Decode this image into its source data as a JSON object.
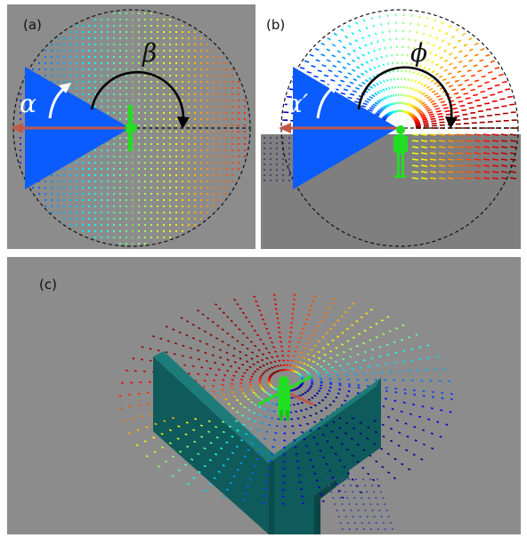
{
  "panels": {
    "a": {
      "label": "(a)",
      "alpha": "α",
      "beta": "β"
    },
    "b": {
      "label": "(b)",
      "alpha": "α′",
      "phi": "ϕ"
    },
    "c": {
      "label": "(c)"
    }
  },
  "colors": {
    "background": "#8c8c8c",
    "floor_b": "#7f7f7f",
    "wedge": "#0a5cff",
    "arrow_red": "#c0584a",
    "figure_green": "#22dd22",
    "wall": "#0f5a5a",
    "wall_top": "#1d7c7a",
    "dashed_circle": "#111111",
    "colormap": "jet (blue → green → yellow → red)"
  },
  "icons": {
    "human": "human-figure-icon"
  }
}
